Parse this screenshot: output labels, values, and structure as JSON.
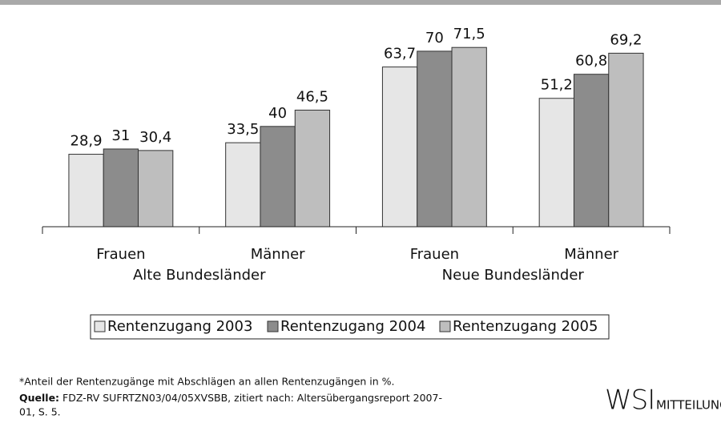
{
  "chart_data": {
    "type": "bar",
    "categories": [
      "Frauen",
      "Männer",
      "Frauen",
      "Männer"
    ],
    "category_groups": [
      "Alte Bundesländer",
      "Neue Bundesländer"
    ],
    "series": [
      {
        "name": "Rentenzugang 2003",
        "color": "#e6e6e6",
        "values": [
          28.9,
          33.5,
          63.7,
          51.2
        ],
        "value_labels": [
          "28,9",
          "33,5",
          "63,7",
          "51,2"
        ]
      },
      {
        "name": "Rentenzugang 2004",
        "color": "#8c8c8c",
        "values": [
          31,
          40,
          70,
          60.8
        ],
        "value_labels": [
          "31",
          "40",
          "70",
          "60,8"
        ]
      },
      {
        "name": "Rentenzugang 2005",
        "color": "#bebebe",
        "values": [
          30.4,
          46.5,
          71.5,
          69.2
        ],
        "value_labels": [
          "30,4",
          "46,5",
          "71,5",
          "69,2"
        ]
      }
    ],
    "legend": "bottom"
  },
  "notes": {
    "footnote": "*Anteil der Rentenzugänge mit Abschlägen an allen Rentenzugängen in %.",
    "source_label": "Quelle:",
    "source_lines": [
      "FDZ-RV SUFRTZN03/04/05XVSBB, zitiert nach: Altersübergangsreport 2007-",
      "01, S. 5."
    ]
  },
  "logo": {
    "main": "WSI",
    "sub": "MITTEILUNGEN"
  }
}
